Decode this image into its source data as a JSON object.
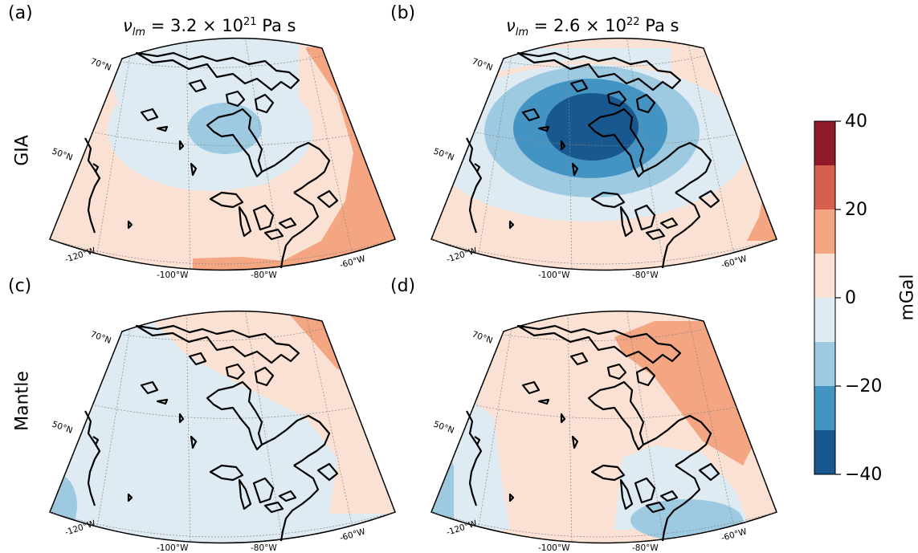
{
  "panels": [
    {
      "letter": "(a)"
    },
    {
      "letter": "(b)"
    },
    {
      "letter": "(c)"
    },
    {
      "letter": "(d)"
    }
  ],
  "columns": [
    {
      "nu": "ν",
      "sub": "lm",
      "eq": " = 3.2 × 10",
      "exp": "21",
      "unit": " Pa s"
    },
    {
      "nu": "ν",
      "sub": "lm",
      "eq": " = 2.6 × 10",
      "exp": "22",
      "unit": " Pa s"
    }
  ],
  "rows": [
    {
      "label": "GIA"
    },
    {
      "label": "Mantle"
    }
  ],
  "axes": {
    "lat_labels": [
      "70°N",
      "50°N"
    ],
    "lon_labels": [
      "-120°W",
      "-100°W",
      "-80°W",
      "-60°W"
    ]
  },
  "colorbar": {
    "label": "mGal",
    "ticks": [
      "40",
      "20",
      "0",
      "−20",
      "−40"
    ],
    "levels": [
      40,
      30,
      20,
      10,
      0,
      -10,
      -20,
      -30,
      -40
    ],
    "colors": [
      "#8e1a2a",
      "#d6604d",
      "#f4a582",
      "#fbe1d4",
      "#deebf3",
      "#9ecae1",
      "#4393c3",
      "#19578f"
    ]
  },
  "colors": {
    "pos1": "#fbe1d4",
    "pos2": "#f4a582",
    "neg1": "#deebf3",
    "neg2": "#9ecae1",
    "neg3": "#4393c3",
    "neg4": "#19578f"
  }
}
